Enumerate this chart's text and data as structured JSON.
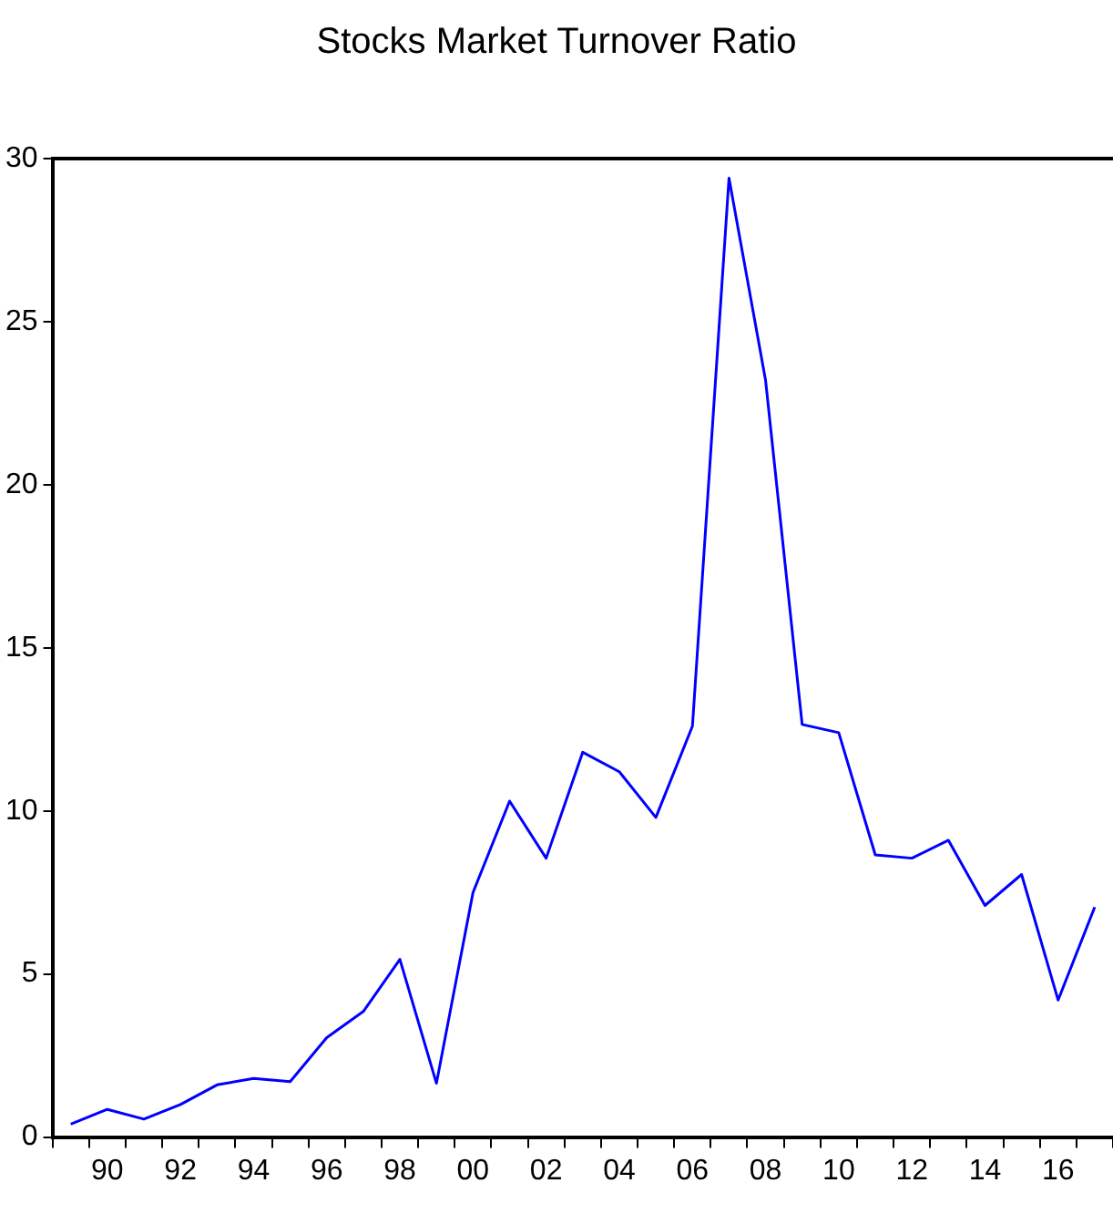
{
  "chart_data": {
    "type": "line",
    "title": "Stocks Market Turnover Ratio",
    "categories": [
      null,
      "90",
      null,
      "92",
      null,
      "94",
      null,
      "96",
      null,
      "98",
      null,
      "00",
      null,
      "02",
      null,
      "04",
      null,
      "06",
      null,
      "08",
      null,
      "10",
      null,
      "12",
      null,
      "14",
      null,
      "16",
      null
    ],
    "series": [
      {
        "color": "#0000ff",
        "values": [
          0.4,
          0.85,
          0.55,
          1.0,
          1.6,
          1.8,
          1.7,
          3.05,
          3.85,
          5.45,
          1.65,
          7.5,
          10.3,
          8.55,
          11.8,
          11.2,
          9.8,
          12.6,
          29.4,
          23.2,
          12.65,
          12.4,
          8.65,
          8.55,
          9.1,
          7.1,
          8.05,
          4.2,
          7.05
        ]
      }
    ],
    "ylim": [
      0,
      30
    ],
    "yticks": [
      0,
      5,
      10,
      15,
      20,
      25,
      30
    ],
    "grid": false,
    "legend": false,
    "marker": "none",
    "line_style": "solid"
  }
}
